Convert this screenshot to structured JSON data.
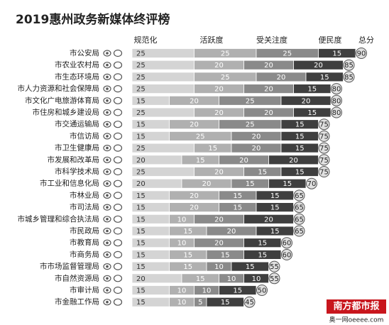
{
  "chart_data": {
    "type": "stacked_bar_horizontal",
    "title": "2019惠州政务新媒体终评榜",
    "watermark": "南方都市报",
    "watermark_site": "奥一网oeeee.com",
    "categories": [
      "市公安局",
      "市农业农村局",
      "市生态环境局",
      "市人力资源和社会保障局",
      "市文化广电旅游体育局",
      "市住房和城乡建设局",
      "市交通运输局",
      "市信访局",
      "市卫生健康局",
      "市发展和改革局",
      "市科学技术局",
      "市工业和信息化局",
      "市林业局",
      "市司法局",
      "市城乡管理和综合执法局",
      "市民政局",
      "市教育局",
      "市商务局",
      "市市场监督管理局",
      "市自然资源局",
      "市审计局",
      "市金融工作局"
    ],
    "series": [
      {
        "name": "规范化",
        "color": "#d4d4d4",
        "values": [
          25,
          25,
          25,
          25,
          15,
          25,
          15,
          15,
          25,
          20,
          25,
          20,
          15,
          15,
          15,
          15,
          15,
          15,
          15,
          20,
          15,
          15
        ]
      },
      {
        "name": "活跃度",
        "color": "#b0b0b0",
        "values": [
          25,
          20,
          25,
          20,
          20,
          20,
          20,
          25,
          15,
          15,
          20,
          20,
          20,
          20,
          10,
          15,
          10,
          15,
          15,
          15,
          10,
          10
        ]
      },
      {
        "name": "受关注度",
        "color": "#8a8a8a",
        "values": [
          25,
          20,
          20,
          20,
          25,
          20,
          25,
          20,
          20,
          20,
          15,
          15,
          15,
          15,
          20,
          20,
          20,
          15,
          10,
          10,
          10,
          5
        ]
      },
      {
        "name": "便民度",
        "color": "#3f3f3f",
        "values": [
          15,
          20,
          15,
          15,
          20,
          15,
          15,
          15,
          15,
          20,
          15,
          15,
          15,
          15,
          20,
          15,
          15,
          15,
          15,
          10,
          15,
          15
        ]
      }
    ],
    "totals": {
      "name": "总分",
      "values": [
        90,
        85,
        85,
        80,
        80,
        80,
        75,
        75,
        75,
        75,
        75,
        70,
        65,
        65,
        65,
        65,
        60,
        60,
        55,
        55,
        50,
        45
      ]
    }
  }
}
